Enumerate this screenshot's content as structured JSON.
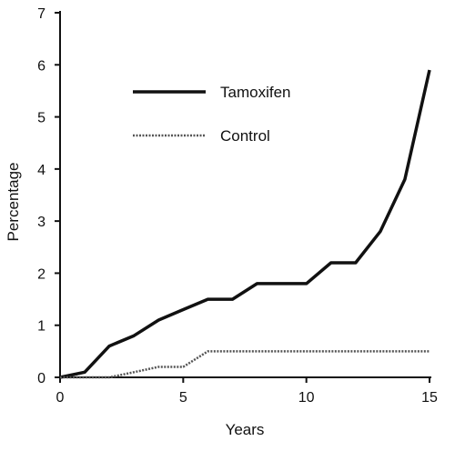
{
  "chart_data": {
    "type": "line",
    "xlabel": "Years",
    "ylabel": "Percentage",
    "xlim": [
      0,
      15
    ],
    "ylim": [
      0,
      7
    ],
    "xticks": [
      0,
      5,
      10,
      15
    ],
    "yticks": [
      0,
      1,
      2,
      3,
      4,
      5,
      6,
      7
    ],
    "grid": false,
    "legend_position": "upper-left",
    "series": [
      {
        "name": "Tamoxifen",
        "style": "solid",
        "color": "#111111",
        "x": [
          0,
          1,
          2,
          3,
          4,
          5,
          6,
          7,
          8,
          9,
          10,
          11,
          12,
          13,
          14,
          15
        ],
        "y": [
          0,
          0.1,
          0.6,
          0.8,
          1.1,
          1.3,
          1.5,
          1.5,
          1.8,
          1.8,
          1.8,
          2.2,
          2.2,
          2.8,
          3.8,
          5.9
        ]
      },
      {
        "name": "Control",
        "style": "dotted",
        "color": "#555555",
        "x": [
          0,
          1,
          2,
          3,
          4,
          5,
          6,
          7,
          8,
          9,
          10,
          11,
          12,
          13,
          14,
          15
        ],
        "y": [
          0,
          0,
          0,
          0.1,
          0.2,
          0.2,
          0.5,
          0.5,
          0.5,
          0.5,
          0.5,
          0.5,
          0.5,
          0.5,
          0.5,
          0.5
        ]
      }
    ]
  }
}
